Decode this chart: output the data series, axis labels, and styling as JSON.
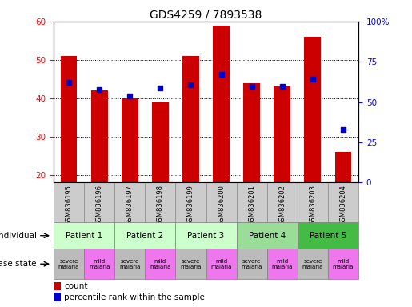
{
  "title": "GDS4259 / 7893538",
  "samples": [
    "GSM836195",
    "GSM836196",
    "GSM836197",
    "GSM836198",
    "GSM836199",
    "GSM836200",
    "GSM836201",
    "GSM836202",
    "GSM836203",
    "GSM836204"
  ],
  "count_values": [
    51,
    42,
    40,
    39,
    51,
    59,
    44,
    43,
    56,
    26
  ],
  "percentile_values": [
    62,
    58,
    54,
    59,
    61,
    67,
    60,
    60,
    64,
    33
  ],
  "ylim_left": [
    18,
    60
  ],
  "ylim_right": [
    0,
    100
  ],
  "yticks_left": [
    20,
    30,
    40,
    50,
    60
  ],
  "yticks_right": [
    0,
    25,
    50,
    75,
    100
  ],
  "ytick_labels_right": [
    "0",
    "25",
    "50",
    "75",
    "100%"
  ],
  "bar_color": "#cc0000",
  "dot_color": "#0000cc",
  "patients": [
    {
      "label": "Patient 1",
      "cols": [
        0,
        1
      ],
      "color": "#ccffcc"
    },
    {
      "label": "Patient 2",
      "cols": [
        2,
        3
      ],
      "color": "#ccffcc"
    },
    {
      "label": "Patient 3",
      "cols": [
        4,
        5
      ],
      "color": "#ccffcc"
    },
    {
      "label": "Patient 4",
      "cols": [
        6,
        7
      ],
      "color": "#99dd99"
    },
    {
      "label": "Patient 5",
      "cols": [
        8,
        9
      ],
      "color": "#44bb44"
    }
  ],
  "disease_states": [
    {
      "label": "severe\nmalaria",
      "col": 0,
      "color": "#bbbbbb"
    },
    {
      "label": "mild\nmalaria",
      "col": 1,
      "color": "#ee77ee"
    },
    {
      "label": "severe\nmalaria",
      "col": 2,
      "color": "#bbbbbb"
    },
    {
      "label": "mild\nmalaria",
      "col": 3,
      "color": "#ee77ee"
    },
    {
      "label": "severe\nmalaria",
      "col": 4,
      "color": "#bbbbbb"
    },
    {
      "label": "mild\nmalaria",
      "col": 5,
      "color": "#ee77ee"
    },
    {
      "label": "severe\nmalaria",
      "col": 6,
      "color": "#bbbbbb"
    },
    {
      "label": "mild\nmalaria",
      "col": 7,
      "color": "#ee77ee"
    },
    {
      "label": "severe\nmalaria",
      "col": 8,
      "color": "#bbbbbb"
    },
    {
      "label": "mild\nmalaria",
      "col": 9,
      "color": "#ee77ee"
    }
  ],
  "sample_bg_color": "#cccccc",
  "individual_row_label": "individual",
  "disease_row_label": "disease state",
  "legend_count_label": "count",
  "legend_percentile_label": "percentile rank within the sample",
  "title_fontsize": 10,
  "tick_fontsize": 7.5,
  "bar_width": 0.55
}
